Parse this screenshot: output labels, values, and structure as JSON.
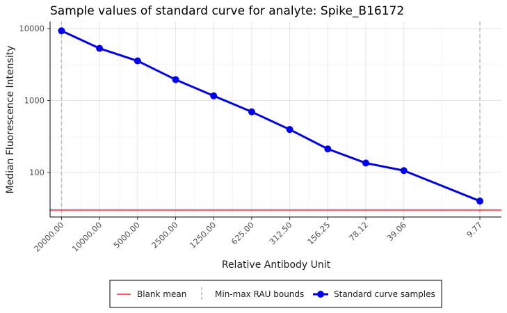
{
  "chart_data": {
    "type": "line",
    "title": "Sample values of standard curve for analyte: Spike_B16172",
    "xlabel": "Relative Antibody Unit",
    "ylabel": "Median Fluorescence Intensity",
    "y_scale": "log",
    "ylim": [
      24,
      12500
    ],
    "y_ticks": [
      100,
      1000,
      10000
    ],
    "y_tick_labels": [
      "100",
      "1000",
      "10000"
    ],
    "x_tick_labels": [
      "20000.00",
      "10000.00",
      "5000.00",
      "2500.00",
      "1250.00",
      "625.00",
      "312.50",
      "156.25",
      "78.12",
      "39.06",
      "9.77"
    ],
    "x_reversed": true,
    "series": [
      {
        "name": "Standard curve samples",
        "color": "#0000ee",
        "x": [
          20000,
          10000,
          5000,
          2500,
          1250,
          625,
          312.5,
          156.25,
          78.12,
          39.06,
          9.77
        ],
        "y": [
          9300,
          5300,
          3550,
          1950,
          1160,
          695,
          395,
          212,
          135,
          106,
          40
        ]
      }
    ],
    "blank_mean": {
      "name": "Blank mean",
      "value": 30,
      "color": "#ee0000"
    },
    "rau_bounds": {
      "name": "Min-max RAU bounds",
      "values": [
        20000,
        9.77
      ],
      "color": "#bbbbbb"
    },
    "grid": true,
    "legend_position": "bottom"
  }
}
